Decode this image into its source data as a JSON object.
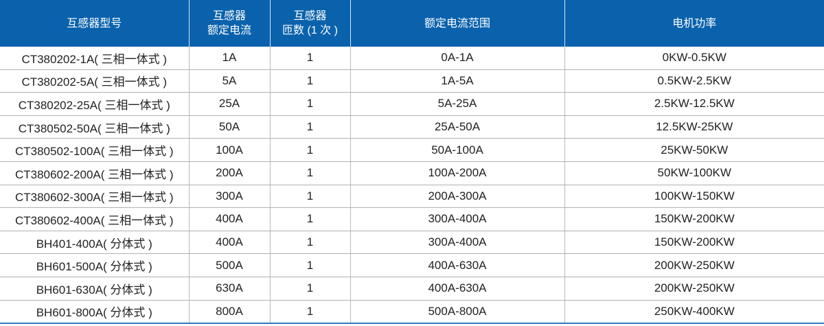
{
  "header_color": "#0a62ad",
  "headers": [
    [
      "互感器型号"
    ],
    [
      "互感器",
      "额定电流"
    ],
    [
      "互感器",
      "匝数 (1 次 )"
    ],
    [
      "额定电流范围"
    ],
    [
      "电机功率"
    ]
  ],
  "rows": [
    [
      "CT380202-1A( 三相一体式 )",
      "1A",
      "1",
      "0A-1A",
      "0KW-0.5KW"
    ],
    [
      "CT380202-5A( 三相一体式 )",
      "5A",
      "1",
      "1A-5A",
      "0.5KW-2.5KW"
    ],
    [
      "CT380202-25A( 三相一体式 )",
      "25A",
      "1",
      "5A-25A",
      "2.5KW-12.5KW"
    ],
    [
      "CT380502-50A( 三相一体式 )",
      "50A",
      "1",
      "25A-50A",
      "12.5KW-25KW"
    ],
    [
      "CT380502-100A( 三相一体式 )",
      "100A",
      "1",
      "50A-100A",
      "25KW-50KW"
    ],
    [
      "CT380602-200A( 三相一体式 )",
      "200A",
      "1",
      "100A-200A",
      "50KW-100KW"
    ],
    [
      "CT380602-300A( 三相一体式 )",
      "300A",
      "1",
      "200A-300A",
      "100KW-150KW"
    ],
    [
      "CT380602-400A( 三相一体式 )",
      "400A",
      "1",
      "300A-400A",
      "150KW-200KW"
    ],
    [
      "BH401-400A( 分体式 )",
      "400A",
      "1",
      "300A-400A",
      "150KW-200KW"
    ],
    [
      "BH601-500A( 分体式 )",
      "500A",
      "1",
      "400A-630A",
      "200KW-250KW"
    ],
    [
      "BH601-630A( 分体式 )",
      "630A",
      "1",
      "400A-630A",
      "200KW-250KW"
    ],
    [
      "BH601-800A( 分体式 )",
      "800A",
      "1",
      "500A-800A",
      "250KW-400KW"
    ]
  ]
}
